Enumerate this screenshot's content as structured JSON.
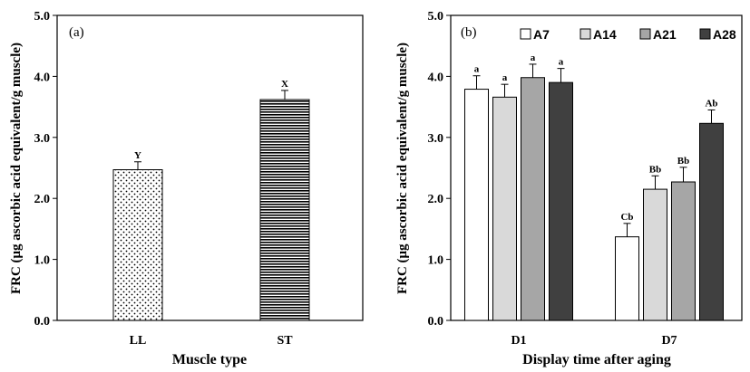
{
  "chart_data": [
    {
      "type": "bar",
      "panel_label": "(a)",
      "categories": [
        "LL",
        "ST"
      ],
      "values": [
        2.47,
        3.62
      ],
      "errors": [
        0.13,
        0.15
      ],
      "labels": [
        "Y",
        "X"
      ],
      "patterns": [
        "dots",
        "hlines"
      ],
      "xlabel": "Muscle type",
      "ylabel": "FRC (μg ascorbic acid equivalent/g muscle)",
      "ylim": [
        0,
        5
      ],
      "yticks": [
        "0.0",
        "1.0",
        "2.0",
        "3.0",
        "4.0",
        "5.0"
      ]
    },
    {
      "type": "bar",
      "panel_label": "(b)",
      "categories": [
        "D1",
        "D7"
      ],
      "series": [
        {
          "name": "A7",
          "color": "#ffffff",
          "values": [
            3.79,
            1.37
          ],
          "errors": [
            0.22,
            0.22
          ],
          "labels": [
            "a",
            "Cb"
          ]
        },
        {
          "name": "A14",
          "color": "#d9d9d9",
          "values": [
            3.66,
            2.15
          ],
          "errors": [
            0.21,
            0.22
          ],
          "labels": [
            "a",
            "Bb"
          ]
        },
        {
          "name": "A21",
          "color": "#a6a6a6",
          "values": [
            3.98,
            2.27
          ],
          "errors": [
            0.22,
            0.24
          ],
          "labels": [
            "a",
            "Bb"
          ]
        },
        {
          "name": "A28",
          "color": "#404040",
          "values": [
            3.9,
            3.23
          ],
          "errors": [
            0.23,
            0.22
          ],
          "labels": [
            "a",
            "Ab"
          ]
        }
      ],
      "xlabel": "Display time after aging",
      "ylabel": "FRC (μg ascorbic acid equivalent/g muscle)",
      "ylim": [
        0,
        5
      ],
      "yticks": [
        "0.0",
        "1.0",
        "2.0",
        "3.0",
        "4.0",
        "5.0"
      ],
      "legend": "top"
    }
  ]
}
